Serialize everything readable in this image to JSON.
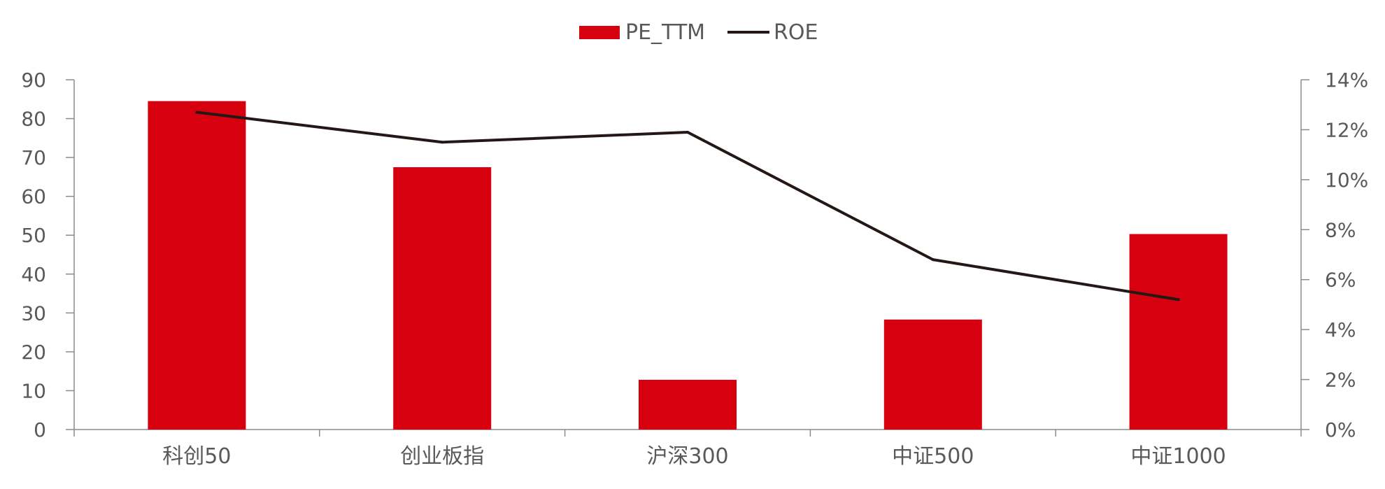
{
  "chart_data": {
    "type": "bar",
    "categories": [
      "科创50",
      "创业板指",
      "沪深300",
      "中证500",
      "中证1000"
    ],
    "series": [
      {
        "name": "PE_TTM",
        "type": "bar",
        "axis": "left",
        "color": "#D7000F",
        "values": [
          84.5,
          67.5,
          12.8,
          28.3,
          50.3
        ]
      },
      {
        "name": "ROE",
        "type": "line",
        "axis": "right",
        "color": "#231815",
        "values": [
          12.7,
          11.5,
          11.9,
          6.8,
          5.2
        ]
      }
    ],
    "y_left": {
      "range": [
        0,
        90
      ],
      "ticks": [
        "0",
        "10",
        "20",
        "30",
        "40",
        "50",
        "60",
        "70",
        "80",
        "90"
      ]
    },
    "y_right": {
      "range": [
        0,
        14
      ],
      "ticks": [
        "0%",
        "2%",
        "4%",
        "6%",
        "8%",
        "10%",
        "12%",
        "14%"
      ]
    },
    "legend_position": "top-center",
    "grid": false
  }
}
